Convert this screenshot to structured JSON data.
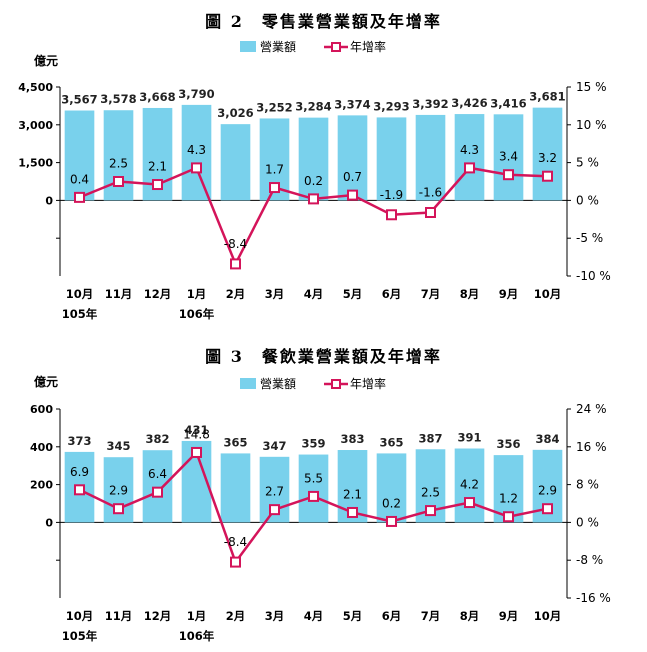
{
  "chart_data": [
    {
      "type": "bar",
      "title": "圖 2　零售業營業額及年增率",
      "ylabel_left": "億元",
      "ylim_left": [
        -3000,
        4500
      ],
      "yticks_left": [
        "4,500",
        "3,000",
        "1,500",
        "0"
      ],
      "ylim_right": [
        -10,
        15
      ],
      "yticks_right": [
        "15 %",
        "10 %",
        "5 %",
        "0 %",
        "-5 %",
        "-10 %"
      ],
      "categories": [
        "10月",
        "11月",
        "12月",
        "1月",
        "2月",
        "3月",
        "4月",
        "5月",
        "6月",
        "7月",
        "8月",
        "9月",
        "10月"
      ],
      "year_labels": [
        "105年",
        "",
        "",
        "106年",
        "",
        "",
        "",
        "",
        "",
        "",
        "",
        "",
        ""
      ],
      "series": [
        {
          "name": "營業額",
          "type": "bar",
          "axis": "left",
          "color": "#79d1ec",
          "values": [
            3567,
            3578,
            3668,
            3790,
            3026,
            3252,
            3284,
            3374,
            3293,
            3392,
            3426,
            3416,
            3681
          ],
          "labels": [
            "3,567",
            "3,578",
            "3,668",
            "3,790",
            "3,026",
            "3,252",
            "3,284",
            "3,374",
            "3,293",
            "3,392",
            "3,426",
            "3,416",
            "3,681"
          ]
        },
        {
          "name": "年增率",
          "type": "line",
          "axis": "right",
          "color": "#d4145a",
          "values": [
            0.4,
            2.5,
            2.1,
            4.3,
            -8.4,
            1.7,
            0.2,
            0.7,
            -1.9,
            -1.6,
            4.3,
            3.4,
            3.2
          ],
          "labels": [
            "0.4",
            "2.5",
            "2.1",
            "4.3",
            "-8.4",
            "1.7",
            "0.2",
            "0.7",
            "-1.9",
            "-1.6",
            "4.3",
            "3.4",
            "3.2"
          ]
        }
      ]
    },
    {
      "type": "bar",
      "title": "圖 3　餐飲業營業額及年增率",
      "ylabel_left": "億元",
      "ylim_left": [
        -400,
        600
      ],
      "yticks_left": [
        "600",
        "400",
        "200",
        "0"
      ],
      "ylim_right": [
        -16,
        24
      ],
      "yticks_right": [
        "24 %",
        "16 %",
        "8 %",
        "0 %",
        "-8 %",
        "-16 %"
      ],
      "categories": [
        "10月",
        "11月",
        "12月",
        "1月",
        "2月",
        "3月",
        "4月",
        "5月",
        "6月",
        "7月",
        "8月",
        "9月",
        "10月"
      ],
      "year_labels": [
        "105年",
        "",
        "",
        "106年",
        "",
        "",
        "",
        "",
        "",
        "",
        "",
        "",
        ""
      ],
      "series": [
        {
          "name": "營業額",
          "type": "bar",
          "axis": "left",
          "color": "#79d1ec",
          "values": [
            373,
            345,
            382,
            431,
            365,
            347,
            359,
            383,
            365,
            387,
            391,
            356,
            384
          ],
          "labels": [
            "373",
            "345",
            "382",
            "431",
            "365",
            "347",
            "359",
            "383",
            "365",
            "387",
            "391",
            "356",
            "384"
          ]
        },
        {
          "name": "年增率",
          "type": "line",
          "axis": "right",
          "color": "#d4145a",
          "values": [
            6.9,
            2.9,
            6.4,
            14.8,
            -8.4,
            2.7,
            5.5,
            2.1,
            0.2,
            2.5,
            4.2,
            1.2,
            2.9
          ],
          "labels": [
            "6.9",
            "2.9",
            "6.4",
            "14.8",
            "-8.4",
            "2.7",
            "5.5",
            "2.1",
            "0.2",
            "2.5",
            "4.2",
            "1.2",
            "2.9"
          ]
        }
      ]
    }
  ]
}
